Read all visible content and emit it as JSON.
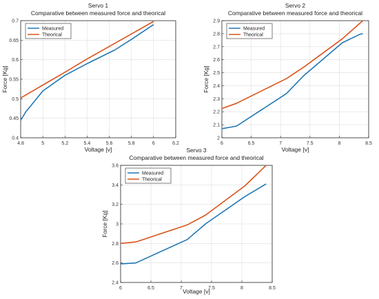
{
  "chart_data": [
    {
      "type": "line",
      "title": "Servo 1",
      "subtitle": "Comparative between measured force and theorical",
      "xlabel": "Voltage [v]",
      "ylabel": "Force [Kg]",
      "xlim": [
        4.8,
        6.2
      ],
      "ylim": [
        0.4,
        0.7
      ],
      "xticks": [
        "4.8",
        "5",
        "5.2",
        "5.4",
        "5.6",
        "5.8",
        "6",
        "6.2"
      ],
      "yticks": [
        "0.4",
        "0.45",
        "0.5",
        "0.55",
        "0.6",
        "0.65",
        "0.7"
      ],
      "grid": true,
      "legend": "top-left",
      "series": [
        {
          "name": "Measured",
          "color": "#1f77b4",
          "x": [
            4.8,
            4.85,
            4.9,
            5.0,
            5.2,
            5.4,
            5.65,
            5.8,
            6.0
          ],
          "y": [
            0.445,
            0.468,
            0.485,
            0.52,
            0.56,
            0.59,
            0.625,
            0.652,
            0.69
          ]
        },
        {
          "name": "Theorical",
          "color": "#d95319",
          "x": [
            4.8,
            5.0,
            5.2,
            5.4,
            5.6,
            5.8,
            6.0
          ],
          "y": [
            0.502,
            0.535,
            0.568,
            0.602,
            0.634,
            0.666,
            0.698
          ]
        }
      ]
    },
    {
      "type": "line",
      "title": "Servo 2",
      "subtitle": "Comparative between measured force and theorical",
      "xlabel": "Voltage [v]",
      "ylabel": "Force [Kg]",
      "xlim": [
        6,
        8.5
      ],
      "ylim": [
        2,
        2.9
      ],
      "xticks": [
        "6",
        "6.5",
        "7",
        "7.5",
        "8",
        "8.5"
      ],
      "yticks": [
        "2",
        "2.1",
        "2.2",
        "2.3",
        "2.4",
        "2.5",
        "2.6",
        "2.7",
        "2.8",
        "2.9"
      ],
      "grid": true,
      "legend": "top-left",
      "series": [
        {
          "name": "Measured",
          "color": "#1f77b4",
          "x": [
            6.0,
            6.25,
            7.1,
            7.4,
            8.05,
            8.35,
            8.4
          ],
          "y": [
            2.07,
            2.09,
            2.34,
            2.48,
            2.73,
            2.795,
            2.8
          ]
        },
        {
          "name": "Theorical",
          "color": "#d95319",
          "x": [
            6.0,
            6.25,
            7.1,
            7.4,
            8.05,
            8.4
          ],
          "y": [
            2.225,
            2.265,
            2.455,
            2.545,
            2.76,
            2.9
          ]
        }
      ]
    },
    {
      "type": "line",
      "title": "Servo 3",
      "subtitle": "Comparative between measured force and theorical",
      "xlabel": "Voltage [v]",
      "ylabel": "Force [Kg]",
      "xlim": [
        6,
        8.5
      ],
      "ylim": [
        2.4,
        3.6
      ],
      "xticks": [
        "6",
        "6.5",
        "7",
        "7.5",
        "8",
        "8.5"
      ],
      "yticks": [
        "2.4",
        "2.6",
        "2.8",
        "3",
        "3.2",
        "3.4",
        "3.6"
      ],
      "grid": true,
      "legend": "top-left",
      "series": [
        {
          "name": "Measured",
          "color": "#1f77b4",
          "x": [
            6.0,
            6.25,
            7.1,
            7.4,
            8.05,
            8.4
          ],
          "y": [
            2.59,
            2.6,
            2.84,
            3.0,
            3.28,
            3.41
          ]
        },
        {
          "name": "Theorical",
          "color": "#d95319",
          "x": [
            6.0,
            6.25,
            7.1,
            7.4,
            8.05,
            8.4
          ],
          "y": [
            2.8,
            2.815,
            2.99,
            3.09,
            3.39,
            3.6
          ]
        }
      ]
    }
  ]
}
